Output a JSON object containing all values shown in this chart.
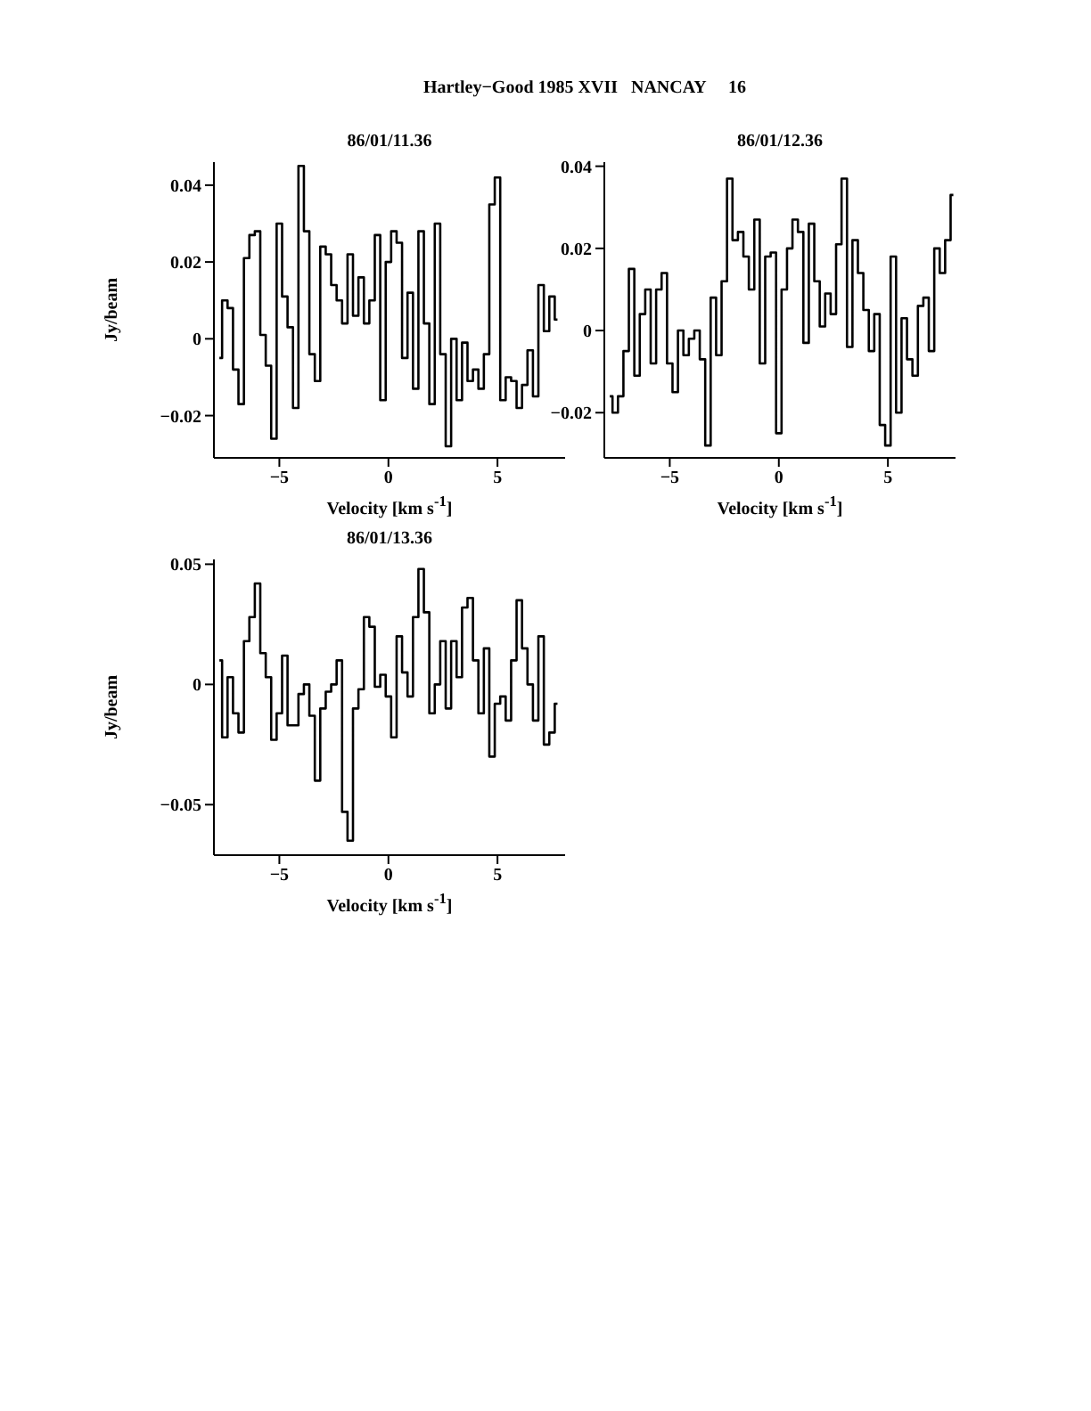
{
  "chart_data": [
    {
      "type": "step",
      "title": "Hartley−Good 1985 XVII   NANCAY     16",
      "subtitle": "86/01/11.36",
      "xlabel": "Velocity [km s$^{-1}$]",
      "ylabel": "Jy/beam",
      "xlim": [
        -8,
        8.1
      ],
      "xticks": [
        -5,
        0,
        5
      ],
      "ylim": [
        -0.031,
        0.046
      ],
      "yticks": [
        -0.02,
        0,
        0.02,
        0.04
      ],
      "color": "#000000",
      "x": [
        -7.75,
        -7.5,
        -7.25,
        -7,
        -6.75,
        -6.5,
        -6.25,
        -6,
        -5.75,
        -5.5,
        -5.25,
        -5,
        -4.75,
        -4.5,
        -4.25,
        -4,
        -3.75,
        -3.5,
        -3.25,
        -3,
        -2.75,
        -2.5,
        -2.25,
        -2,
        -1.75,
        -1.5,
        -1.25,
        -1,
        -0.75,
        -0.5,
        -0.25,
        0,
        0.25,
        0.5,
        0.75,
        1,
        1.25,
        1.5,
        1.75,
        2,
        2.25,
        2.5,
        2.75,
        3,
        3.25,
        3.5,
        3.75,
        4,
        4.25,
        4.5,
        4.75,
        5,
        5.25,
        5.5,
        5.75,
        6,
        6.25,
        6.5,
        6.75,
        7,
        7.25,
        7.5,
        7.75
      ],
      "values": [
        -0.005,
        0.01,
        0.008,
        -0.008,
        -0.017,
        0.021,
        0.027,
        0.028,
        0.001,
        -0.007,
        -0.026,
        0.03,
        0.011,
        0.003,
        -0.018,
        0.045,
        0.028,
        -0.004,
        -0.011,
        0.024,
        0.022,
        0.014,
        0.01,
        0.004,
        0.022,
        0.006,
        0.016,
        0.004,
        0.01,
        0.027,
        -0.016,
        0.02,
        0.028,
        0.025,
        -0.005,
        0.012,
        -0.013,
        0.028,
        0.004,
        -0.017,
        0.03,
        -0.004,
        -0.028,
        0.0,
        -0.016,
        -0.001,
        -0.011,
        -0.008,
        -0.013,
        -0.004,
        0.035,
        0.042,
        -0.016,
        -0.01,
        -0.011,
        -0.018,
        -0.012,
        -0.003,
        -0.015,
        0.014,
        0.002,
        0.011,
        0.005
      ]
    },
    {
      "type": "step",
      "subtitle": "86/01/12.36",
      "xlabel": "Velocity [km s$^{-1}$]",
      "xlim": [
        -8,
        8.1
      ],
      "xticks": [
        -5,
        0,
        5
      ],
      "ylim": [
        -0.031,
        0.041
      ],
      "yticks": [
        -0.02,
        0,
        0.02,
        0.04
      ],
      "color": "#000000",
      "x": [
        -7.75,
        -7.5,
        -7.25,
        -7,
        -6.75,
        -6.5,
        -6.25,
        -6,
        -5.75,
        -5.5,
        -5.25,
        -5,
        -4.75,
        -4.5,
        -4.25,
        -4,
        -3.75,
        -3.5,
        -3.25,
        -3,
        -2.75,
        -2.5,
        -2.25,
        -2,
        -1.75,
        -1.5,
        -1.25,
        -1,
        -0.75,
        -0.5,
        -0.25,
        0,
        0.25,
        0.5,
        0.75,
        1,
        1.25,
        1.5,
        1.75,
        2,
        2.25,
        2.5,
        2.75,
        3,
        3.25,
        3.5,
        3.75,
        4,
        4.25,
        4.5,
        4.75,
        5,
        5.25,
        5.5,
        5.75,
        6,
        6.25,
        6.5,
        6.75,
        7,
        7.25,
        7.5,
        7.75,
        8
      ],
      "values": [
        -0.016,
        -0.02,
        -0.016,
        -0.005,
        0.015,
        -0.011,
        0.004,
        0.01,
        -0.008,
        0.01,
        0.014,
        -0.008,
        -0.015,
        0.0,
        -0.006,
        -0.002,
        0.0,
        -0.007,
        -0.028,
        0.008,
        -0.006,
        0.012,
        0.037,
        0.022,
        0.024,
        0.018,
        0.01,
        0.027,
        -0.008,
        0.018,
        0.019,
        -0.025,
        0.01,
        0.02,
        0.027,
        0.024,
        -0.003,
        0.026,
        0.012,
        0.001,
        0.009,
        0.004,
        0.021,
        0.037,
        -0.004,
        0.022,
        0.014,
        0.005,
        -0.005,
        0.004,
        -0.023,
        -0.028,
        0.018,
        -0.02,
        0.003,
        -0.007,
        -0.011,
        0.006,
        0.008,
        -0.005,
        0.02,
        0.014,
        0.022,
        0.033
      ]
    },
    {
      "type": "step",
      "subtitle": "86/01/13.36",
      "xlabel": "Velocity [km s$^{-1}$]",
      "ylabel": "Jy/beam",
      "xlim": [
        -8,
        8.1
      ],
      "xticks": [
        -5,
        0,
        5
      ],
      "ylim": [
        -0.071,
        0.052
      ],
      "yticks": [
        -0.05,
        0,
        0.05
      ],
      "color": "#000000",
      "x": [
        -7.75,
        -7.5,
        -7.25,
        -7,
        -6.75,
        -6.5,
        -6.25,
        -6,
        -5.75,
        -5.5,
        -5.25,
        -5,
        -4.75,
        -4.5,
        -4.25,
        -4,
        -3.75,
        -3.5,
        -3.25,
        -3,
        -2.75,
        -2.5,
        -2.25,
        -2,
        -1.75,
        -1.5,
        -1.25,
        -1,
        -0.75,
        -0.5,
        -0.25,
        0,
        0.25,
        0.5,
        0.75,
        1,
        1.25,
        1.5,
        1.75,
        2,
        2.25,
        2.5,
        2.75,
        3,
        3.25,
        3.5,
        3.75,
        4,
        4.25,
        4.5,
        4.75,
        5,
        5.25,
        5.5,
        5.75,
        6,
        6.25,
        6.5,
        6.75,
        7,
        7.25,
        7.5,
        7.75
      ],
      "values": [
        0.01,
        -0.022,
        0.003,
        -0.012,
        -0.02,
        0.018,
        0.028,
        0.042,
        0.013,
        0.003,
        -0.023,
        -0.012,
        0.012,
        -0.017,
        -0.017,
        -0.004,
        0.0,
        -0.013,
        -0.04,
        -0.01,
        -0.003,
        0.0,
        0.01,
        -0.053,
        -0.065,
        -0.01,
        -0.002,
        0.028,
        0.024,
        -0.001,
        0.004,
        -0.005,
        -0.022,
        0.02,
        0.005,
        -0.005,
        0.028,
        0.048,
        0.03,
        -0.012,
        0.0,
        0.018,
        -0.01,
        0.018,
        0.003,
        0.032,
        0.036,
        0.01,
        -0.012,
        0.015,
        -0.03,
        -0.008,
        -0.005,
        -0.015,
        0.01,
        0.035,
        0.015,
        0.0,
        -0.015,
        0.02,
        -0.025,
        -0.02,
        -0.008
      ]
    }
  ]
}
